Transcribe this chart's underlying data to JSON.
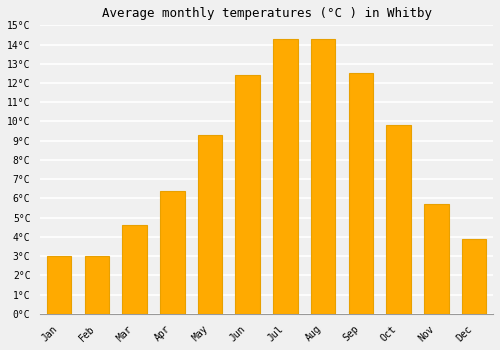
{
  "title": "Average monthly temperatures (°C ) in Whitby",
  "months": [
    "Jan",
    "Feb",
    "Mar",
    "Apr",
    "May",
    "Jun",
    "Jul",
    "Aug",
    "Sep",
    "Oct",
    "Nov",
    "Dec"
  ],
  "values": [
    3.0,
    3.0,
    4.6,
    6.4,
    9.3,
    12.4,
    14.3,
    14.3,
    12.5,
    9.8,
    5.7,
    3.9
  ],
  "bar_color": "#FFAA00",
  "bar_edge_color": "#E8A000",
  "ylim": [
    0,
    15
  ],
  "ytick_step": 1,
  "background_color": "#F0F0F0",
  "grid_color": "#FFFFFF",
  "title_fontsize": 9,
  "tick_fontsize": 7,
  "font_family": "monospace",
  "bar_width": 0.65
}
